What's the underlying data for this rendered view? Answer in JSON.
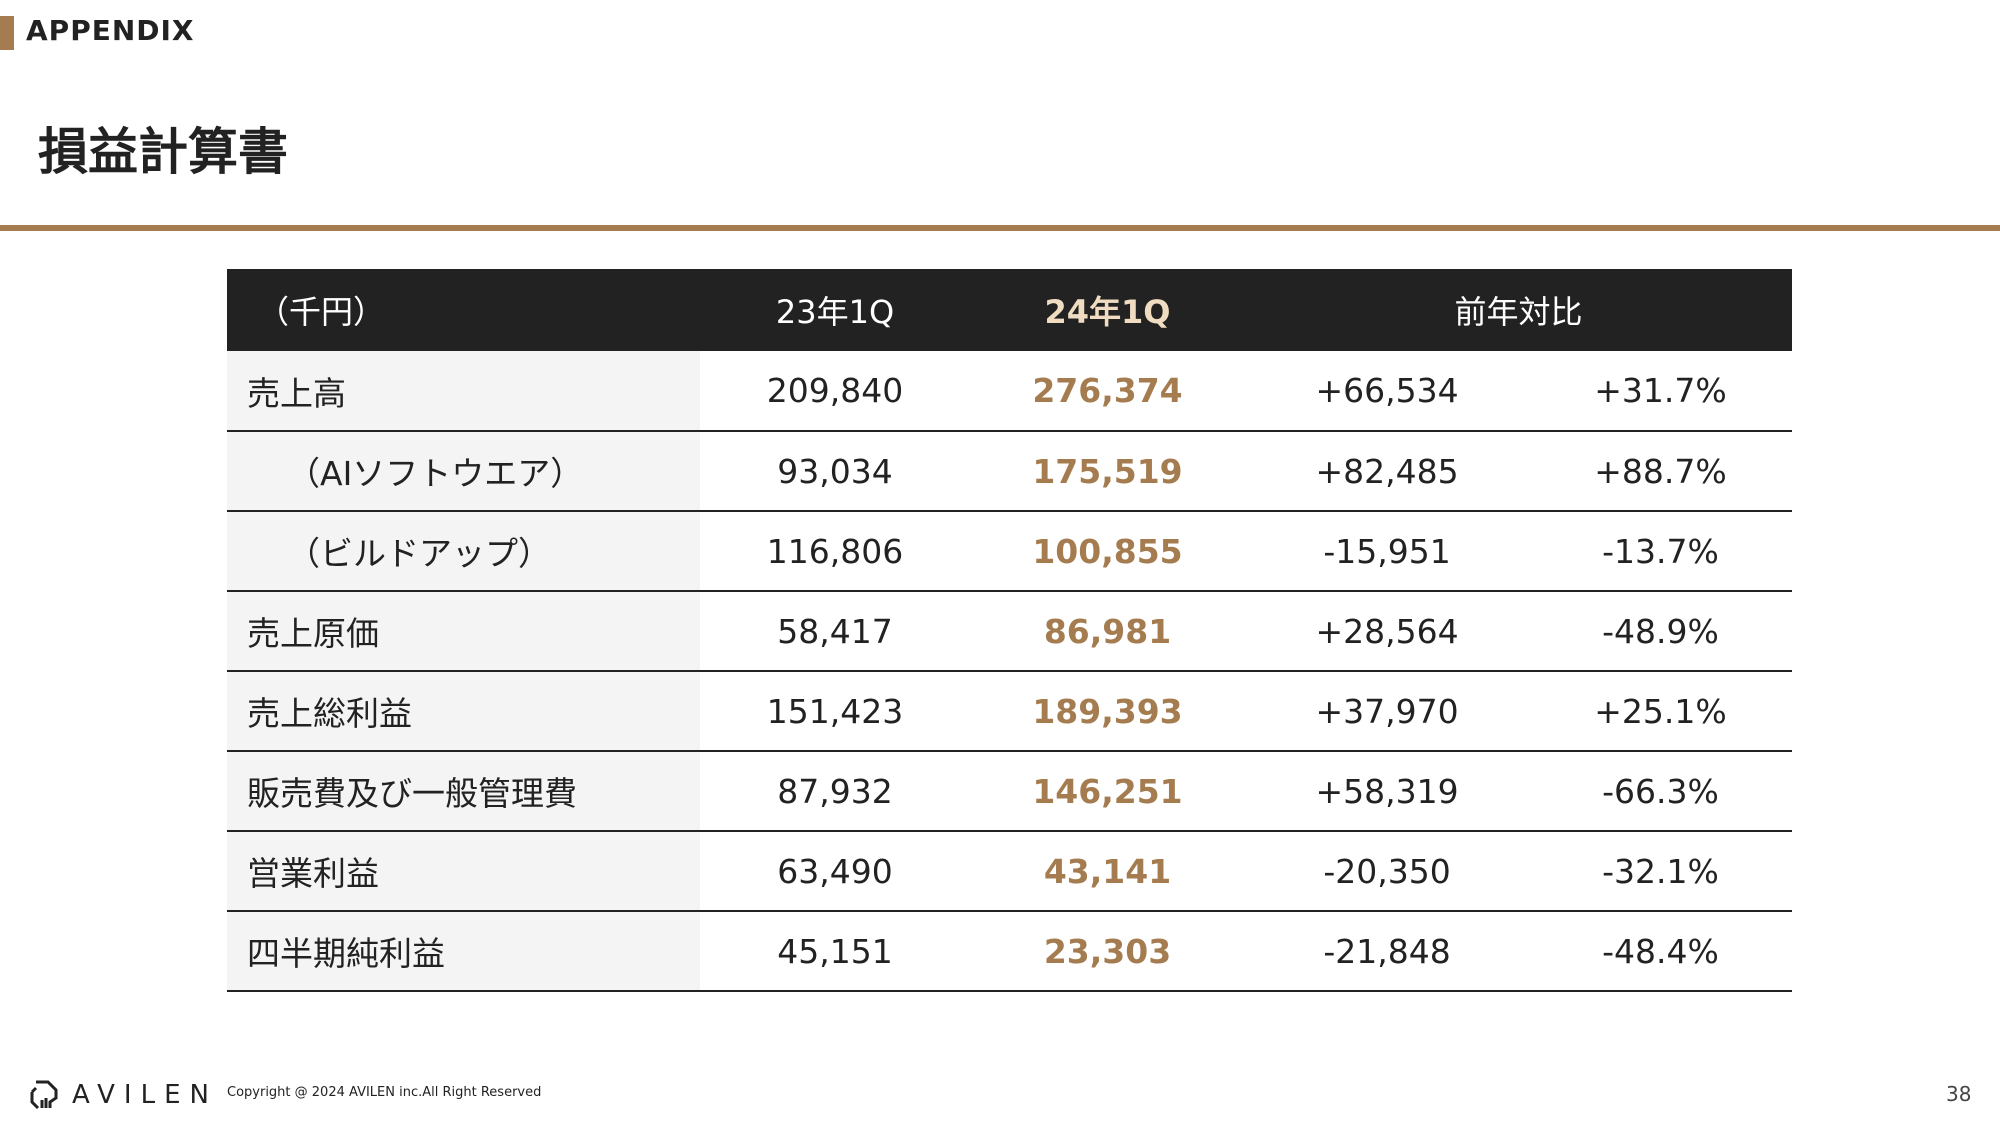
{
  "header": {
    "tag": "APPENDIX",
    "title": "損益計算書"
  },
  "colors": {
    "accent": "#a57c4f",
    "header_bg": "#222222"
  },
  "table": {
    "columns": [
      "（千円）",
      "23年1Q",
      "24年1Q",
      "前年対比"
    ],
    "rows": [
      {
        "label": "売上高",
        "sub": false,
        "v23": "209,840",
        "v24": "276,374",
        "diff": "+66,534",
        "pct": "+31.7%"
      },
      {
        "label": "（AIソフトウエア）",
        "sub": true,
        "v23": "93,034",
        "v24": "175,519",
        "diff": "+82,485",
        "pct": "+88.7%"
      },
      {
        "label": "（ビルドアップ）",
        "sub": true,
        "v23": "116,806",
        "v24": "100,855",
        "diff": "-15,951",
        "pct": "-13.7%"
      },
      {
        "label": "売上原価",
        "sub": false,
        "v23": "58,417",
        "v24": "86,981",
        "diff": "+28,564",
        "pct": "-48.9%"
      },
      {
        "label": "売上総利益",
        "sub": false,
        "v23": "151,423",
        "v24": "189,393",
        "diff": "+37,970",
        "pct": "+25.1%"
      },
      {
        "label": "販売費及び一般管理費",
        "sub": false,
        "v23": "87,932",
        "v24": "146,251",
        "diff": "+58,319",
        "pct": "-66.3%"
      },
      {
        "label": "営業利益",
        "sub": false,
        "v23": "63,490",
        "v24": "43,141",
        "diff": "-20,350",
        "pct": "-32.1%"
      },
      {
        "label": "四半期純利益",
        "sub": false,
        "v23": "45,151",
        "v24": "23,303",
        "diff": "-21,848",
        "pct": "-48.4%"
      }
    ]
  },
  "footer": {
    "logo": "AVILEN",
    "copyright": "Copyright @ 2024 AVILEN inc.All Right Reserved",
    "page": "38"
  }
}
